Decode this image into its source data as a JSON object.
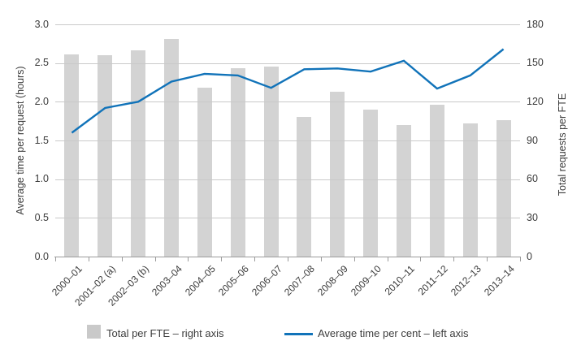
{
  "chart_data": {
    "type": "bar",
    "subtype": "bar-and-line-combo",
    "title": "",
    "categories": [
      "2000–01",
      "2001–02 (a)",
      "2002–03 (b)",
      "2003–04",
      "2004–05",
      "2005–06",
      "2006–07",
      "2007–08",
      "2008–09",
      "2009–10",
      "2010–11",
      "2011–12",
      "2012–13",
      "2013–14"
    ],
    "series": [
      {
        "name": "Total per FTE – right axis",
        "type": "bar",
        "axis": "right",
        "color": "#d3d3d3",
        "values": [
          157,
          156,
          160,
          169,
          131,
          146,
          147,
          108,
          128,
          114,
          102,
          118,
          103,
          106
        ]
      },
      {
        "name": "Average time per cent – left axis",
        "type": "line",
        "axis": "left",
        "color": "#1173b9",
        "values": [
          1.6,
          1.92,
          2.0,
          2.26,
          2.36,
          2.34,
          2.18,
          2.42,
          2.43,
          2.39,
          2.53,
          2.17,
          2.34,
          2.68
        ]
      }
    ],
    "left_axis": {
      "title": "Average time per request (hours)",
      "min": 0,
      "max": 3,
      "tick_labels": [
        "0.0",
        "0.5",
        "1.0",
        "1.5",
        "2.0",
        "2.5",
        "3.0"
      ]
    },
    "right_axis": {
      "title": "Total requests per FTE",
      "min": 0,
      "max": 180,
      "tick_labels": [
        "0",
        "30",
        "60",
        "90",
        "120",
        "150",
        "180"
      ]
    },
    "grid": true,
    "legend_position": "bottom"
  },
  "legend": {
    "bar_label": "Total per FTE – right axis",
    "line_label": "Average time per cent – left axis"
  },
  "colors": {
    "bar": "#d3d3d3",
    "line": "#1173b9",
    "gridline": "#c9c9c9",
    "axis": "#9b9b9b",
    "text": "#3d3d3d",
    "legend_swatch": "#c9c9c9",
    "background": "#ffffff"
  }
}
